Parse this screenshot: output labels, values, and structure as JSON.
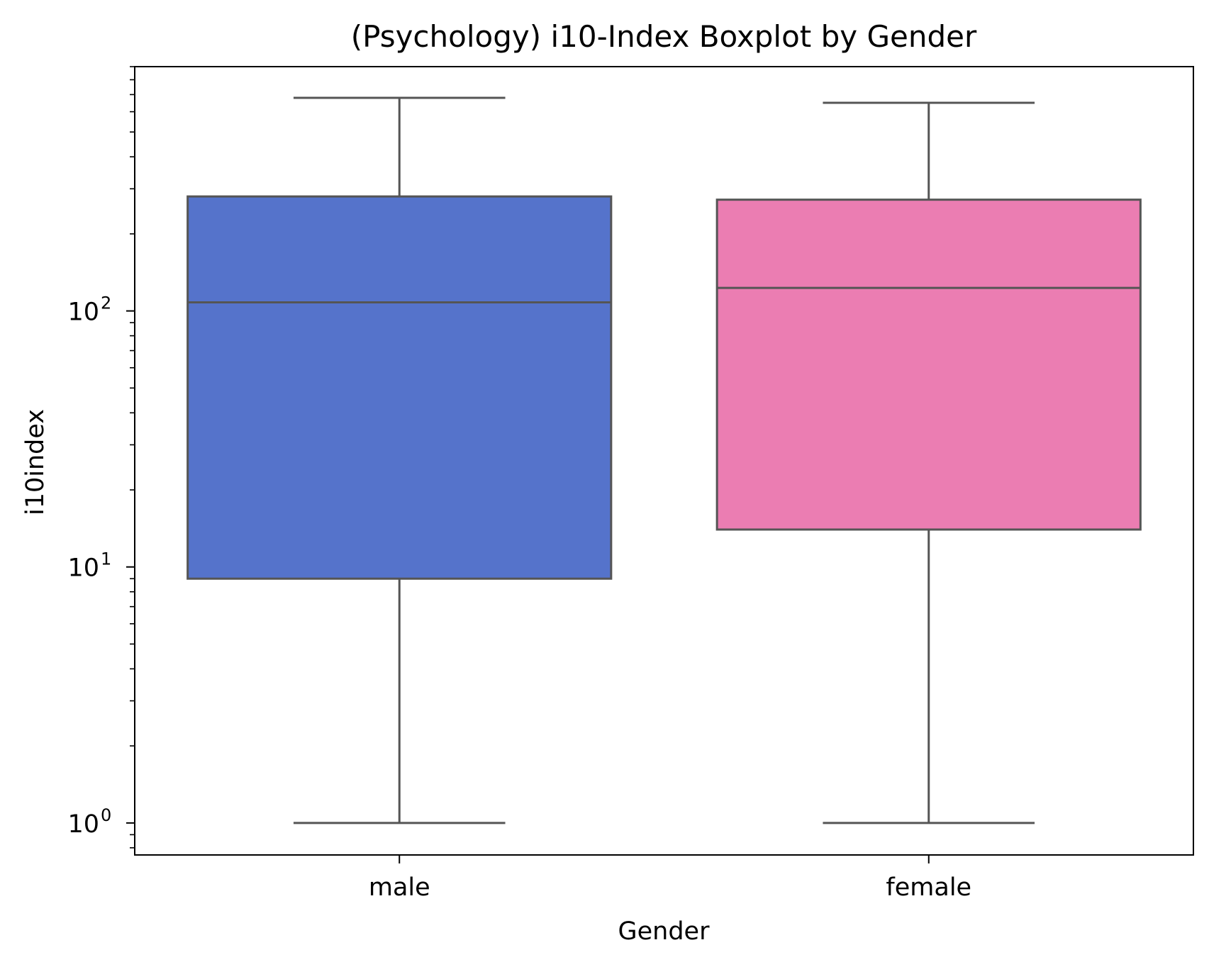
{
  "chart_data": {
    "type": "box",
    "title": "(Psychology) i10-Index Boxplot by Gender",
    "xlabel": "Gender",
    "ylabel": "i10index",
    "yscale": "log",
    "ylim": [
      0.75,
      900
    ],
    "categories": [
      "male",
      "female"
    ],
    "boxes": [
      {
        "category": "male",
        "whisker_low": 1,
        "q1": 9.0,
        "median": 108,
        "q3": 280,
        "whisker_high": 680,
        "color": "#5573CB"
      },
      {
        "category": "female",
        "whisker_low": 1,
        "q1": 14.0,
        "median": 123,
        "q3": 272,
        "whisker_high": 650,
        "color": "#EB7DB2"
      }
    ],
    "yticks": [
      {
        "value": 1,
        "base": "10",
        "exp": "0"
      },
      {
        "value": 10,
        "base": "10",
        "exp": "1"
      },
      {
        "value": 100,
        "base": "10",
        "exp": "2"
      }
    ],
    "line_color": "#555555",
    "grid": false,
    "legend": "none"
  }
}
